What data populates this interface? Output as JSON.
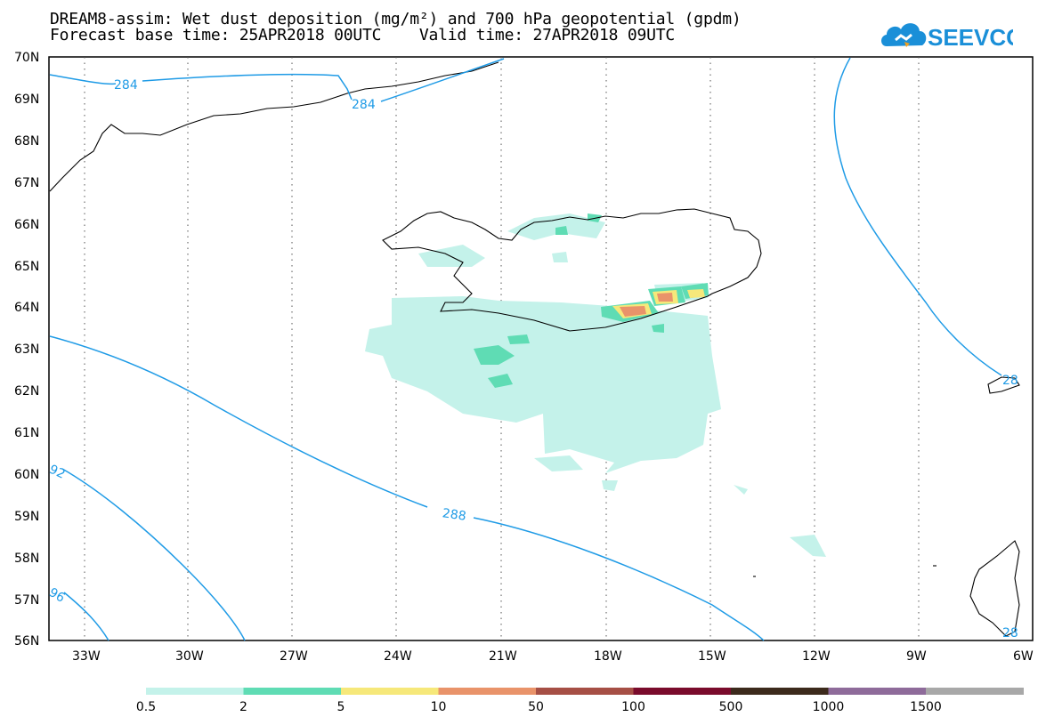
{
  "title_line1": "DREAM8-assim: Wet dust deposition (mg/m²) and 700 hPa geopotential (gpdm)",
  "title_line2": "Forecast base time: 25APR2018 00UTC    Valid time: 27APR2018 09UTC",
  "logo": {
    "text": "SEEVCCC",
    "icon": "cloud-logo-icon",
    "color": "#1a8fd8"
  },
  "map": {
    "lat_labels": [
      "70N",
      "69N",
      "68N",
      "67N",
      "66N",
      "65N",
      "64N",
      "63N",
      "62N",
      "61N",
      "60N",
      "59N",
      "58N",
      "57N",
      "56N"
    ],
    "lon_labels": [
      "33W",
      "30W",
      "27W",
      "24W",
      "21W",
      "18W",
      "15W",
      "12W",
      "9W",
      "6W"
    ],
    "contour_labels": [
      "284",
      "284",
      "288",
      "92",
      "96",
      "28",
      "28"
    ],
    "contour_color": "#1f9be6"
  },
  "legend": {
    "labels": [
      "0.5",
      "2",
      "5",
      "10",
      "50",
      "100",
      "500",
      "1000",
      "1500"
    ],
    "colors": [
      "#c4f2ea",
      "#5fdcb4",
      "#f6e87a",
      "#e9936a",
      "#a64f45",
      "#7a0b2c",
      "#3c2a1c",
      "#8e6b9a",
      "#a8a8a8"
    ]
  }
}
